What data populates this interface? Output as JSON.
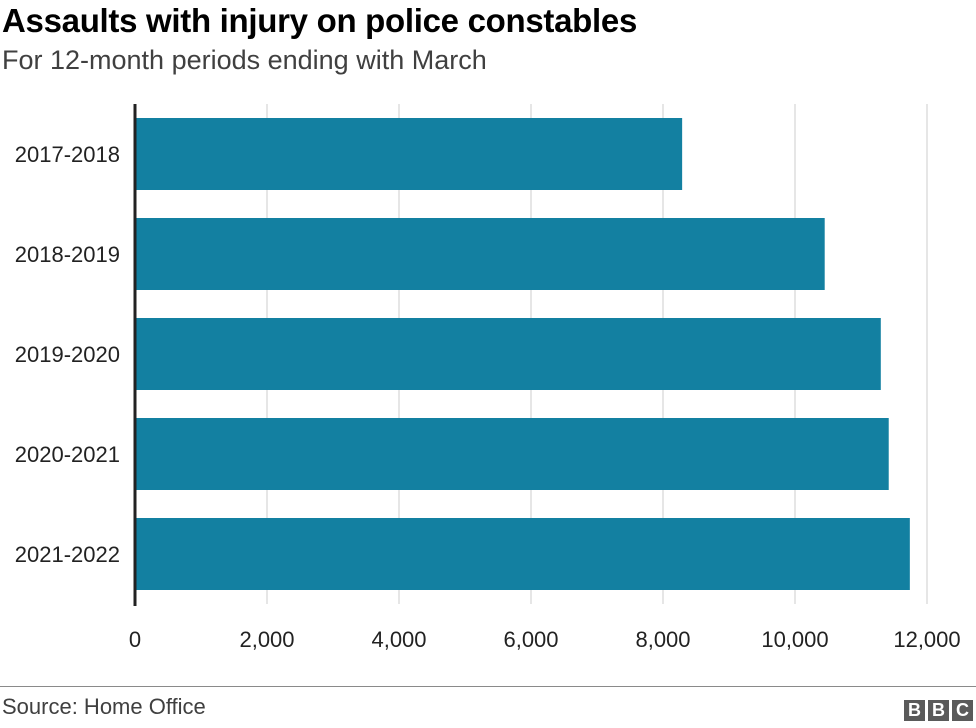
{
  "chart_data": {
    "type": "bar",
    "orientation": "horizontal",
    "title": "Assaults with injury on police constables",
    "subtitle": "For 12-month periods ending with March",
    "categories": [
      "2017-2018",
      "2018-2019",
      "2019-2020",
      "2020-2021",
      "2021-2022"
    ],
    "values": [
      8290,
      10450,
      11300,
      11420,
      11740
    ],
    "xlim": [
      0,
      12000
    ],
    "xticks": [
      0,
      2000,
      4000,
      6000,
      8000,
      10000,
      12000
    ],
    "xtick_labels": [
      "0",
      "2,000",
      "4,000",
      "6,000",
      "8,000",
      "10,000",
      "12,000"
    ],
    "grid": "vertical",
    "bar_color": "#1380a1"
  },
  "footer": {
    "source": "Source: Home Office",
    "logo": [
      "B",
      "B",
      "C"
    ]
  }
}
